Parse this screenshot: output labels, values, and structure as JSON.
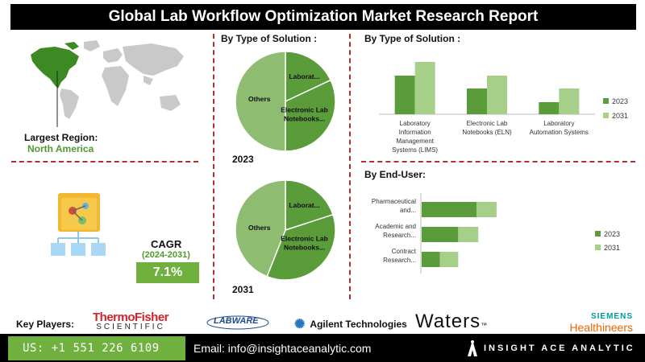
{
  "title": "Global Lab Workflow Optimization Market Research Report",
  "region": {
    "label": "Largest Region:",
    "value": "North America"
  },
  "cagr": {
    "label": "CAGR",
    "period": "(2024-2031)",
    "value": "7.1%"
  },
  "pie_section": {
    "title": "By Type of Solution :"
  },
  "bar_section": {
    "title": "By  Type of Solution :"
  },
  "enduser_section": {
    "title": "By End-User:"
  },
  "colors": {
    "dark_green": "#5a9b3a",
    "light_green": "#a6d08a",
    "mid_green": "#8ebc70",
    "accent_green": "#6fb03e",
    "divider_red": "#b03030"
  },
  "chart_data": [
    {
      "type": "pie",
      "title": "2023",
      "slices": [
        {
          "label": "Laborat...",
          "value": 18
        },
        {
          "label": "Electronic Lab Notebooks...",
          "value": 32
        },
        {
          "label": "Others",
          "value": 50
        }
      ]
    },
    {
      "type": "pie",
      "title": "2031",
      "slices": [
        {
          "label": "Laborat...",
          "value": 20
        },
        {
          "label": "Electronic Lab Notebooks...",
          "value": 36
        },
        {
          "label": "Others",
          "value": 44
        }
      ]
    },
    {
      "type": "bar",
      "orientation": "vertical",
      "categories": [
        "Laboratory Information Management Systems (LIMS)",
        "Electronic Lab Notebooks (ELN)",
        "Laboratory Automation Systems"
      ],
      "series": [
        {
          "name": "2023",
          "values": [
            48,
            32,
            15
          ]
        },
        {
          "name": "2031",
          "values": [
            65,
            48,
            32
          ]
        }
      ],
      "ylim": [
        0,
        70
      ],
      "legend": "right"
    },
    {
      "type": "bar",
      "orientation": "horizontal",
      "categories": [
        "Pharmaceutical and...",
        "Academic and Research...",
        "Contract Research..."
      ],
      "series": [
        {
          "name": "2023",
          "values": [
            60,
            40,
            20
          ]
        },
        {
          "name": "2031",
          "values": [
            82,
            62,
            40
          ]
        }
      ],
      "xlim": [
        0,
        150
      ],
      "legend": "right"
    }
  ],
  "footer": {
    "key_players_label": "Key Players:",
    "players": {
      "thermo_top": "ThermoFisher",
      "thermo_bottom": "SCIENTIFIC",
      "labware": "LABWARE",
      "agilent": "Agilent Technologies",
      "waters": "Waters",
      "siemens_top": "SIEMENS",
      "siemens_bottom": "Healthineers"
    },
    "phone": "US: +1 551 226 6109",
    "email": "Email: info@insightaceanalytic.com",
    "brand": "INSIGHT ACE ANALYTIC"
  }
}
